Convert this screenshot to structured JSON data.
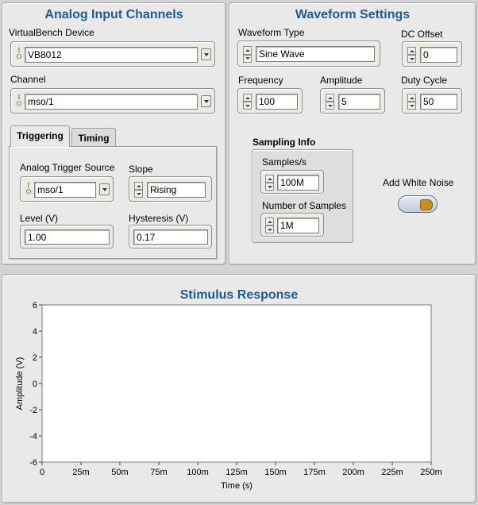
{
  "analog_input": {
    "title": "Analog Input Channels",
    "device_label": "VirtualBench Device",
    "device_value": "VB8012",
    "channel_label": "Channel",
    "channel_value": "mso/1",
    "tabs": [
      {
        "label": "Triggering",
        "active": true
      },
      {
        "label": "Timing",
        "active": false
      }
    ],
    "triggering": {
      "source_label": "Analog Trigger Source",
      "source_value": "mso/1",
      "slope_label": "Slope",
      "slope_value": "Rising",
      "level_label": "Level (V)",
      "level_value": "1.00",
      "hysteresis_label": "Hysteresis (V)",
      "hysteresis_value": "0.17"
    }
  },
  "waveform": {
    "title": "Waveform Settings",
    "type_label": "Waveform Type",
    "type_value": "Sine Wave",
    "dc_offset_label": "DC Offset",
    "dc_offset_value": "0",
    "frequency_label": "Frequency",
    "frequency_value": "100",
    "amplitude_label": "Amplitude",
    "amplitude_value": "5",
    "duty_cycle_label": "Duty Cycle",
    "duty_cycle_value": "50",
    "sampling": {
      "title": "Sampling Info",
      "samples_label": "Samples/s",
      "samples_value": "100M",
      "num_samples_label": "Number of Samples",
      "num_samples_value": "1M"
    },
    "white_noise_label": "Add White Noise"
  },
  "io_icon": {
    "top": "I",
    "bottom": "O"
  },
  "chart_data": {
    "type": "line",
    "title": "Stimulus Response",
    "xlabel": "Time (s)",
    "ylabel": "Amplitude (V)",
    "xlim": [
      0,
      0.25
    ],
    "ylim": [
      -6,
      6
    ],
    "x_ticks": [
      "0",
      "25m",
      "50m",
      "75m",
      "100m",
      "125m",
      "150m",
      "175m",
      "200m",
      "225m",
      "250m"
    ],
    "y_ticks": [
      "6",
      "4",
      "2",
      "0",
      "-2",
      "-4",
      "-6"
    ],
    "grid": true,
    "series": []
  }
}
